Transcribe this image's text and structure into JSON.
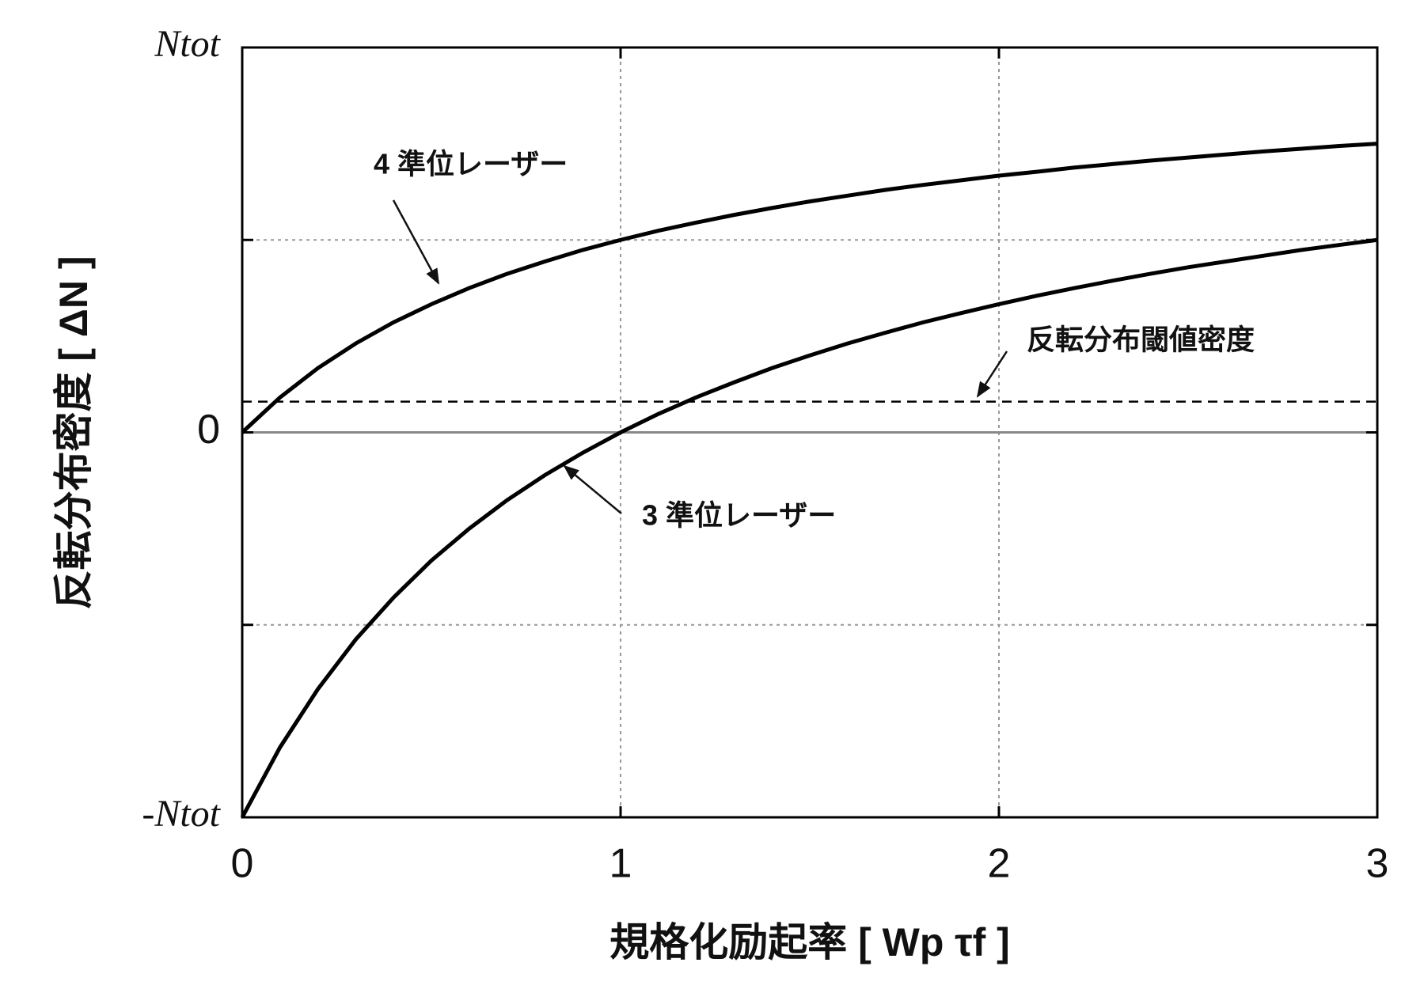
{
  "chart_data": {
    "type": "line",
    "x_label": "規格化励起率 [ Wp τf ]",
    "y_label": "反転分布密度 [ ΔN ]",
    "x": [
      0,
      0.1,
      0.2,
      0.3,
      0.4,
      0.5,
      0.6,
      0.7,
      0.8,
      0.9,
      1.0,
      1.1,
      1.2,
      1.3,
      1.4,
      1.5,
      1.6,
      1.7,
      1.8,
      1.9,
      2.0,
      2.1,
      2.2,
      2.3,
      2.4,
      2.5,
      2.6,
      2.7,
      2.8,
      2.9,
      3.0
    ],
    "series": [
      {
        "color": "#000000",
        "values": [
          0,
          0.091,
          0.167,
          0.231,
          0.286,
          0.333,
          0.375,
          0.412,
          0.444,
          0.474,
          0.5,
          0.524,
          0.545,
          0.565,
          0.583,
          0.6,
          0.615,
          0.63,
          0.643,
          0.655,
          0.667,
          0.677,
          0.688,
          0.697,
          0.706,
          0.714,
          0.722,
          0.73,
          0.737,
          0.744,
          0.75
        ]
      },
      {
        "color": "#000000",
        "values": [
          -1,
          -0.818,
          -0.667,
          -0.538,
          -0.429,
          -0.333,
          -0.25,
          -0.176,
          -0.111,
          -0.053,
          0,
          0.048,
          0.091,
          0.13,
          0.167,
          0.2,
          0.231,
          0.259,
          0.286,
          0.31,
          0.333,
          0.355,
          0.375,
          0.394,
          0.412,
          0.429,
          0.444,
          0.459,
          0.474,
          0.487,
          0.5
        ]
      }
    ],
    "threshold": 0.08,
    "annotations": [
      "4 準位レーザー",
      "反転分布閾値密度",
      "3 準位レーザー"
    ],
    "xlim": [
      0,
      3
    ],
    "xticks": [
      0,
      1,
      2,
      3
    ],
    "ylim": [
      -1,
      1
    ],
    "yticks": [
      {
        "value": -1,
        "label": "-Ntot"
      },
      {
        "value": -0.5,
        "label": null
      },
      {
        "value": 0,
        "label": "0"
      },
      {
        "value": 0.5,
        "label": null
      },
      {
        "value": 1,
        "label": "Ntot"
      }
    ],
    "grid": true
  }
}
